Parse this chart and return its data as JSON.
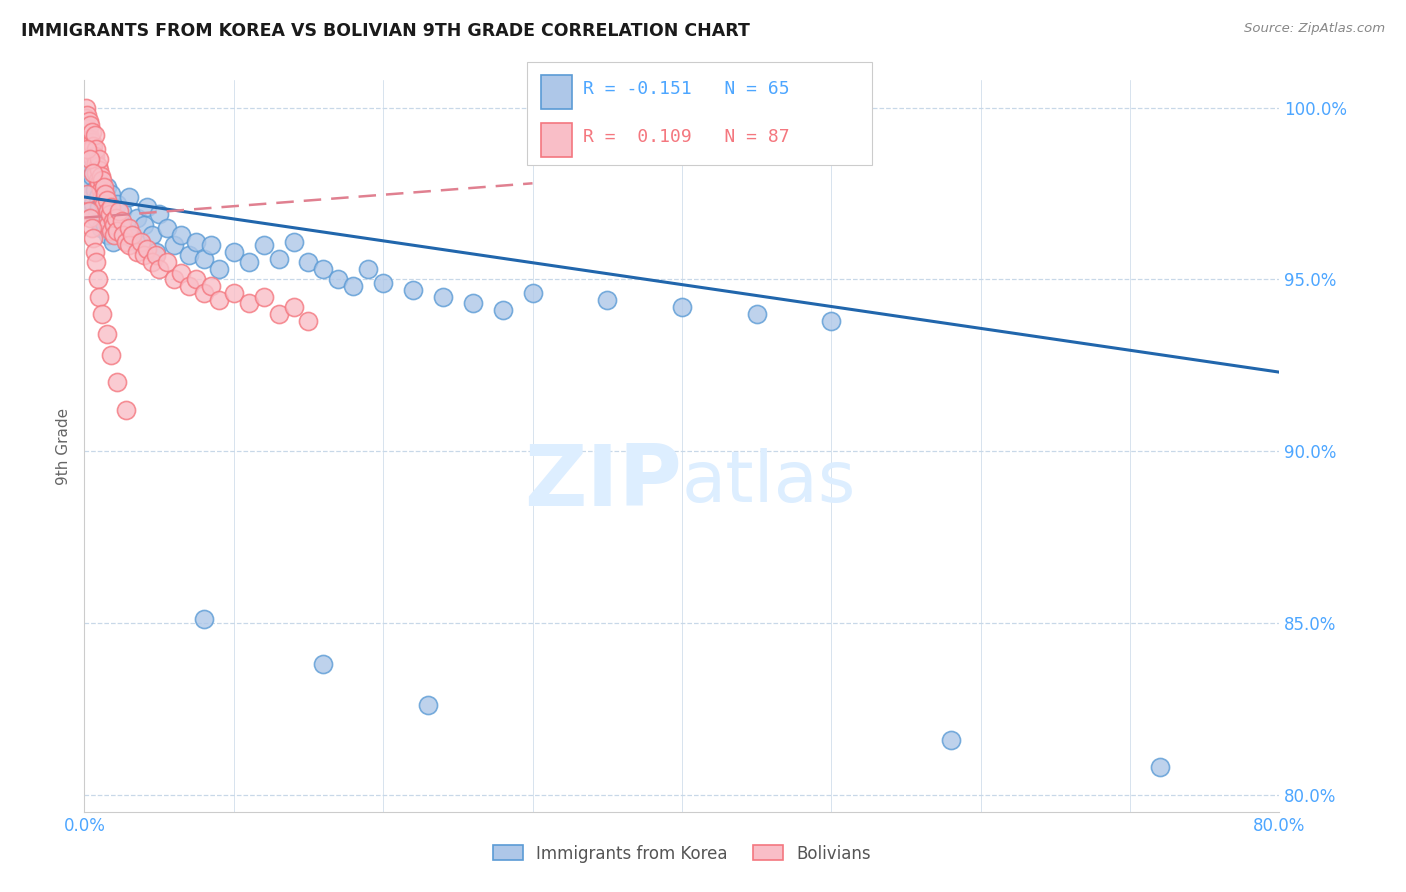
{
  "title": "IMMIGRANTS FROM KOREA VS BOLIVIAN 9TH GRADE CORRELATION CHART",
  "source": "Source: ZipAtlas.com",
  "ylabel": "9th Grade",
  "xmin": 0.0,
  "xmax": 0.8,
  "ymin": 0.795,
  "ymax": 1.008,
  "yticks": [
    0.8,
    0.85,
    0.9,
    0.95,
    1.0
  ],
  "ytick_labels": [
    "80.0%",
    "85.0%",
    "90.0%",
    "95.0%",
    "100.0%"
  ],
  "xticks": [
    0.0,
    0.1,
    0.2,
    0.3,
    0.4,
    0.5,
    0.6,
    0.7,
    0.8
  ],
  "xtick_labels": [
    "0.0%",
    "",
    "",
    "",
    "",
    "",
    "",
    "",
    "80.0%"
  ],
  "legend_korea_label": "Immigrants from Korea",
  "legend_bolivia_label": "Bolivians",
  "legend_line1": "R = -0.151   N = 65",
  "legend_line2": "R =  0.109   N = 87",
  "korea_color": "#5b9bd5",
  "bolivia_color": "#f4777f",
  "korea_face_color": "#aec7e8",
  "bolivia_face_color": "#f9bec7",
  "trend_korea_color": "#2166ac",
  "trend_bolivia_color": "#e08090",
  "watermark_color": "#ddeeff",
  "axis_color": "#4da6ff",
  "grid_color": "#c8d8e8",
  "background_color": "#ffffff",
  "korea_x": [
    0.001,
    0.002,
    0.003,
    0.004,
    0.005,
    0.006,
    0.007,
    0.008,
    0.009,
    0.01,
    0.01,
    0.011,
    0.012,
    0.013,
    0.014,
    0.015,
    0.016,
    0.018,
    0.019,
    0.02,
    0.022,
    0.025,
    0.028,
    0.03,
    0.032,
    0.035,
    0.038,
    0.04,
    0.042,
    0.045,
    0.048,
    0.05,
    0.055,
    0.06,
    0.065,
    0.07,
    0.075,
    0.08,
    0.085,
    0.09,
    0.1,
    0.11,
    0.12,
    0.13,
    0.14,
    0.15,
    0.16,
    0.17,
    0.18,
    0.19,
    0.2,
    0.22,
    0.24,
    0.26,
    0.28,
    0.3,
    0.35,
    0.4,
    0.45,
    0.5,
    0.08,
    0.16,
    0.23,
    0.58,
    0.72
  ],
  "korea_y": [
    0.978,
    0.982,
    0.975,
    0.97,
    0.98,
    0.972,
    0.976,
    0.968,
    0.974,
    0.971,
    0.979,
    0.965,
    0.973,
    0.969,
    0.966,
    0.977,
    0.963,
    0.975,
    0.961,
    0.967,
    0.972,
    0.97,
    0.965,
    0.974,
    0.962,
    0.968,
    0.96,
    0.966,
    0.971,
    0.963,
    0.958,
    0.969,
    0.965,
    0.96,
    0.963,
    0.957,
    0.961,
    0.956,
    0.96,
    0.953,
    0.958,
    0.955,
    0.96,
    0.956,
    0.961,
    0.955,
    0.953,
    0.95,
    0.948,
    0.953,
    0.949,
    0.947,
    0.945,
    0.943,
    0.941,
    0.946,
    0.944,
    0.942,
    0.94,
    0.938,
    0.851,
    0.838,
    0.826,
    0.816,
    0.808
  ],
  "bolivia_x": [
    0.001,
    0.001,
    0.002,
    0.002,
    0.003,
    0.003,
    0.004,
    0.004,
    0.005,
    0.005,
    0.005,
    0.006,
    0.006,
    0.007,
    0.007,
    0.008,
    0.008,
    0.008,
    0.009,
    0.009,
    0.01,
    0.01,
    0.01,
    0.011,
    0.011,
    0.012,
    0.012,
    0.013,
    0.013,
    0.014,
    0.015,
    0.015,
    0.016,
    0.016,
    0.017,
    0.018,
    0.018,
    0.019,
    0.02,
    0.02,
    0.021,
    0.022,
    0.023,
    0.025,
    0.026,
    0.028,
    0.03,
    0.03,
    0.032,
    0.035,
    0.038,
    0.04,
    0.042,
    0.045,
    0.048,
    0.05,
    0.055,
    0.06,
    0.065,
    0.07,
    0.075,
    0.08,
    0.085,
    0.09,
    0.1,
    0.11,
    0.12,
    0.13,
    0.14,
    0.15,
    0.002,
    0.003,
    0.004,
    0.005,
    0.006,
    0.007,
    0.008,
    0.009,
    0.01,
    0.012,
    0.015,
    0.018,
    0.022,
    0.028,
    0.002,
    0.004,
    0.006
  ],
  "bolivia_y": [
    1.0,
    0.997,
    0.998,
    0.994,
    0.996,
    0.992,
    0.995,
    0.991,
    0.99,
    0.993,
    0.988,
    0.989,
    0.985,
    0.992,
    0.986,
    0.984,
    0.988,
    0.981,
    0.983,
    0.979,
    0.982,
    0.978,
    0.985,
    0.98,
    0.976,
    0.979,
    0.974,
    0.977,
    0.972,
    0.975,
    0.973,
    0.968,
    0.97,
    0.966,
    0.969,
    0.964,
    0.971,
    0.967,
    0.966,
    0.963,
    0.968,
    0.964,
    0.97,
    0.967,
    0.963,
    0.961,
    0.965,
    0.96,
    0.963,
    0.958,
    0.961,
    0.957,
    0.959,
    0.955,
    0.957,
    0.953,
    0.955,
    0.95,
    0.952,
    0.948,
    0.95,
    0.946,
    0.948,
    0.944,
    0.946,
    0.943,
    0.945,
    0.94,
    0.942,
    0.938,
    0.975,
    0.97,
    0.968,
    0.965,
    0.962,
    0.958,
    0.955,
    0.95,
    0.945,
    0.94,
    0.934,
    0.928,
    0.92,
    0.912,
    0.988,
    0.985,
    0.981
  ],
  "korea_trend_x": [
    0.0,
    0.8
  ],
  "korea_trend_y": [
    0.974,
    0.923
  ],
  "bolivia_trend_x": [
    0.0,
    0.3
  ],
  "bolivia_trend_y": [
    0.968,
    0.978
  ]
}
